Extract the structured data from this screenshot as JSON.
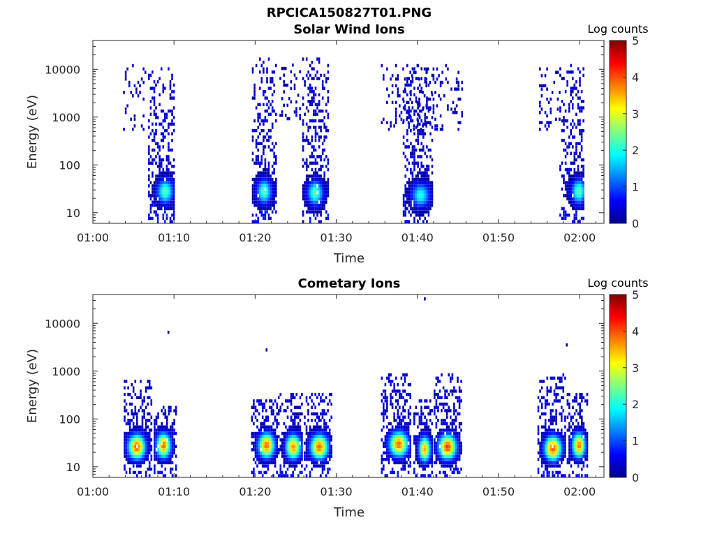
{
  "figure": {
    "title": "RPCICA150827T01.PNG"
  },
  "colormap": "jet",
  "chart_data": [
    {
      "type": "heatmap",
      "title": "Solar Wind Ions",
      "xlabel": "Time",
      "ylabel": "Energy (eV)",
      "x_ticks": [
        "01:00",
        "01:10",
        "01:20",
        "01:30",
        "01:40",
        "01:50",
        "02:00"
      ],
      "y_ticks": [
        "10",
        "100",
        "1000",
        "10000"
      ],
      "y_scale": "log",
      "xlim_minutes": [
        0,
        63
      ],
      "ylim_eV": [
        6,
        40000
      ],
      "colorbar": {
        "title": "Log counts",
        "range": [
          0,
          5
        ],
        "ticks": [
          "0",
          "1",
          "2",
          "3",
          "4",
          "5"
        ]
      },
      "bursts": [
        {
          "start_min": 6.8,
          "end_min": 10.0,
          "peak_min": 8.8,
          "peak_energy_eV": 30,
          "peak_log_counts": 2.3,
          "high_energy_eV": 15000
        },
        {
          "start_min": 19.6,
          "end_min": 22.6,
          "peak_min": 21.0,
          "peak_energy_eV": 30,
          "peak_log_counts": 2.3,
          "high_energy_eV": 20000
        },
        {
          "start_min": 25.8,
          "end_min": 29.0,
          "peak_min": 27.3,
          "peak_energy_eV": 28,
          "peak_log_counts": 2.3,
          "high_energy_eV": 20000
        },
        {
          "start_min": 38.2,
          "end_min": 41.8,
          "peak_min": 40.3,
          "peak_energy_eV": 25,
          "peak_log_counts": 2.0,
          "high_energy_eV": 15000
        },
        {
          "start_min": 57.5,
          "end_min": 60.5,
          "peak_min": 59.8,
          "peak_energy_eV": 30,
          "peak_log_counts": 2.3,
          "high_energy_eV": 15000
        }
      ],
      "sparse_regions": [
        {
          "start_min": 3.5,
          "end_min": 6.5,
          "energy_range_eV": [
            600,
            15000
          ]
        },
        {
          "start_min": 23.0,
          "end_min": 25.6,
          "energy_range_eV": [
            1000,
            15000
          ]
        },
        {
          "start_min": 35.5,
          "end_min": 45.5,
          "energy_range_eV": [
            600,
            15000
          ]
        },
        {
          "start_min": 55.0,
          "end_min": 57.5,
          "energy_range_eV": [
            600,
            12000
          ]
        }
      ]
    },
    {
      "type": "heatmap",
      "title": "Cometary Ions",
      "xlabel": "Time",
      "ylabel": "Energy (eV)",
      "x_ticks": [
        "01:00",
        "01:10",
        "01:20",
        "01:30",
        "01:40",
        "01:50",
        "02:00"
      ],
      "y_ticks": [
        "10",
        "100",
        "1000",
        "10000"
      ],
      "y_scale": "log",
      "xlim_minutes": [
        0,
        63
      ],
      "ylim_eV": [
        6,
        40000
      ],
      "colorbar": {
        "title": "Log counts",
        "range": [
          0,
          5
        ],
        "ticks": [
          "0",
          "1",
          "2",
          "3",
          "4",
          "5"
        ]
      },
      "bursts": [
        {
          "start_min": 3.8,
          "end_min": 7.2,
          "peak_min": 5.3,
          "peak_energy_eV": 28,
          "peak_log_counts": 4.0,
          "high_energy_eV": 700
        },
        {
          "start_min": 7.5,
          "end_min": 10.3,
          "peak_min": 8.6,
          "peak_energy_eV": 30,
          "peak_log_counts": 3.9,
          "high_energy_eV": 200
        },
        {
          "start_min": 19.5,
          "end_min": 22.7,
          "peak_min": 21.3,
          "peak_energy_eV": 30,
          "peak_log_counts": 3.9,
          "high_energy_eV": 300
        },
        {
          "start_min": 22.8,
          "end_min": 25.8,
          "peak_min": 24.6,
          "peak_energy_eV": 28,
          "peak_log_counts": 3.7,
          "high_energy_eV": 400
        },
        {
          "start_min": 26.0,
          "end_min": 29.5,
          "peak_min": 27.8,
          "peak_energy_eV": 28,
          "peak_log_counts": 3.9,
          "high_energy_eV": 400
        },
        {
          "start_min": 35.5,
          "end_min": 39.2,
          "peak_min": 37.6,
          "peak_energy_eV": 32,
          "peak_log_counts": 3.9,
          "high_energy_eV": 1000
        },
        {
          "start_min": 39.5,
          "end_min": 41.8,
          "peak_min": 40.8,
          "peak_energy_eV": 25,
          "peak_log_counts": 3.6,
          "high_energy_eV": 300
        },
        {
          "start_min": 42.0,
          "end_min": 45.5,
          "peak_min": 43.6,
          "peak_energy_eV": 28,
          "peak_log_counts": 4.1,
          "high_energy_eV": 1000
        },
        {
          "start_min": 54.8,
          "end_min": 58.2,
          "peak_min": 56.6,
          "peak_energy_eV": 26,
          "peak_log_counts": 4.0,
          "high_energy_eV": 1000
        },
        {
          "start_min": 58.4,
          "end_min": 61.0,
          "peak_min": 59.8,
          "peak_energy_eV": 30,
          "peak_log_counts": 3.8,
          "high_energy_eV": 400
        }
      ],
      "isolated_points": [
        {
          "min": 9.2,
          "energy_eV": 7000
        },
        {
          "min": 21.3,
          "energy_eV": 3000
        },
        {
          "min": 40.8,
          "energy_eV": 35000
        },
        {
          "min": 58.3,
          "energy_eV": 3800
        }
      ]
    }
  ]
}
